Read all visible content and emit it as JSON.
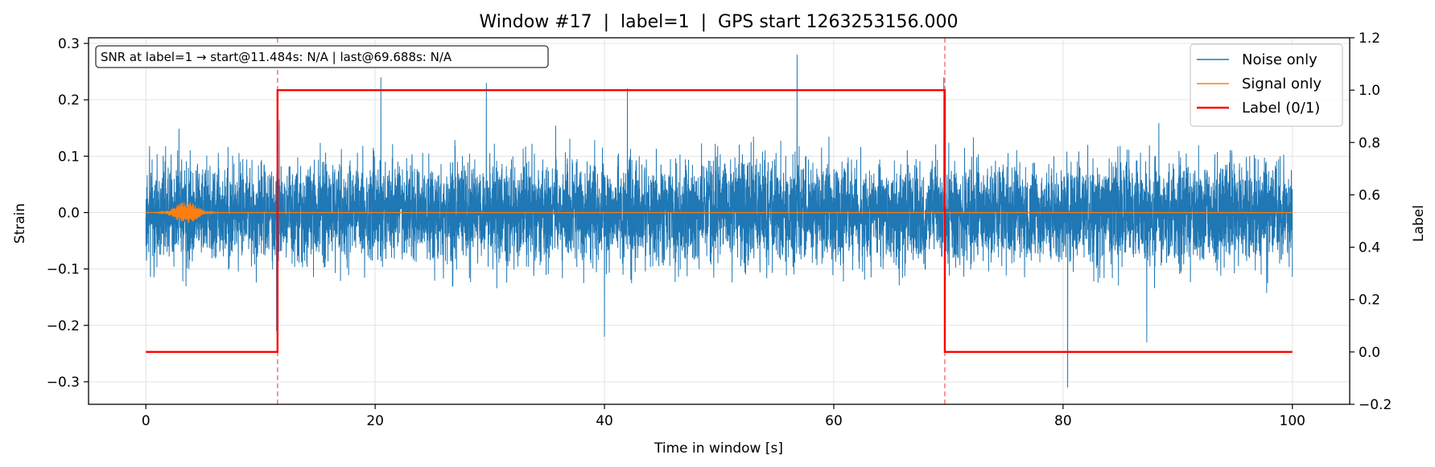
{
  "chart_data": {
    "type": "line",
    "title": "Window #17  |  label=1  |  GPS start 1263253156.000",
    "xlabel": "Time in window [s]",
    "ylabel": "Strain",
    "y2label": "Label",
    "xlim": [
      -5,
      105
    ],
    "ylim": [
      -0.34,
      0.31
    ],
    "y2lim": [
      -0.2,
      1.2
    ],
    "x_ticks": [
      0,
      20,
      40,
      60,
      80,
      100
    ],
    "y_ticks": [
      -0.3,
      -0.2,
      -0.1,
      0.0,
      0.1,
      0.2,
      0.3
    ],
    "y2_ticks": [
      -0.2,
      0.0,
      0.2,
      0.4,
      0.6,
      0.8,
      1.0,
      1.2
    ],
    "x_tick_labels": [
      "0",
      "20",
      "40",
      "60",
      "80",
      "100"
    ],
    "y_tick_labels": [
      "−0.3",
      "−0.2",
      "−0.1",
      "0.0",
      "0.1",
      "0.2",
      "0.3"
    ],
    "y2_tick_labels": [
      "−0.2",
      "0.0",
      "0.2",
      "0.4",
      "0.6",
      "0.8",
      "1.0",
      "1.2"
    ],
    "grid": true,
    "legend_position": "top-right",
    "annotation": "SNR at label=1 → start@11.484s: N/A | last@69.688s: N/A",
    "vlines": [
      11.484,
      69.688
    ],
    "series": [
      {
        "name": "Noise only",
        "color": "#1f77b4",
        "axis": "left",
        "kind": "noise",
        "x_range": [
          0,
          100
        ],
        "typical_envelope": [
          -0.1,
          0.1
        ],
        "extremes": [
          {
            "x": 11.4,
            "y": -0.21
          },
          {
            "x": 20.5,
            "y": 0.24
          },
          {
            "x": 29.7,
            "y": 0.23
          },
          {
            "x": 40.0,
            "y": -0.22
          },
          {
            "x": 42.0,
            "y": 0.22
          },
          {
            "x": 56.8,
            "y": 0.28
          },
          {
            "x": 69.6,
            "y": 0.24
          },
          {
            "x": 80.4,
            "y": -0.31
          },
          {
            "x": 87.3,
            "y": -0.23
          }
        ]
      },
      {
        "name": "Signal only",
        "color": "#ff7f0e",
        "axis": "left",
        "kind": "chirp",
        "x_range": [
          0,
          100
        ],
        "peak_x": 3.5,
        "peak_amplitude": 0.02
      },
      {
        "name": "Label (0/1)",
        "color": "#ff0000",
        "axis": "right",
        "kind": "step",
        "x": [
          0,
          11.484,
          11.484,
          69.688,
          69.688,
          100
        ],
        "y": [
          0,
          0,
          1,
          1,
          0,
          0
        ]
      }
    ]
  }
}
